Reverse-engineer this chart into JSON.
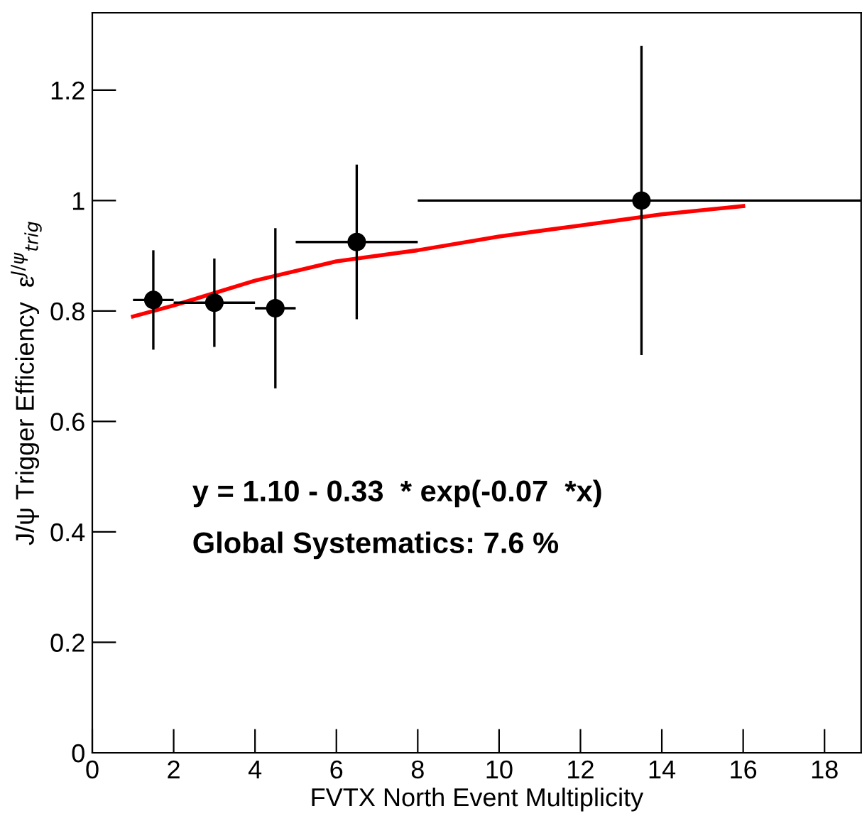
{
  "chart_data": {
    "type": "scatter",
    "xlabel": "FVTX North Event Multiplicity",
    "ylabel": "J/ψ Trigger Efficiency  ε$^{J/ψ}$$_{trig}$",
    "x": [
      1.5,
      3,
      4.5,
      6.5,
      13.5
    ],
    "series": [
      {
        "type": "scatter",
        "color": "#000000",
        "marker": "circle",
        "values": [
          0.82,
          0.815,
          0.805,
          0.925,
          1.0
        ],
        "errors": [
          0.09,
          0.08,
          0.145,
          0.14,
          0.28
        ],
        "xerrors": [
          0.5,
          1,
          0.5,
          1.5,
          5.5
        ]
      },
      {
        "type": "line",
        "color": "#ff0000",
        "marker": "none",
        "line_style": "solid",
        "x": [
          1,
          2,
          4,
          6,
          8,
          10,
          12,
          14,
          16
        ],
        "values": [
          0.79,
          0.81,
          0.855,
          0.89,
          0.91,
          0.935,
          0.955,
          0.975,
          0.99
        ]
      }
    ],
    "annotations": [
      "y = 1.10 - 0.33  * exp(-0.07  *x)",
      "Global Systematics: 7.6 %"
    ],
    "xlim": [
      0,
      18.9
    ],
    "ylim": [
      0,
      1.34
    ],
    "xticks": [
      0,
      2,
      4,
      6,
      8,
      10,
      12,
      14,
      16,
      18
    ],
    "yticks": [
      0,
      0.2,
      0.4,
      0.6,
      0.8,
      1,
      1.2
    ],
    "grid": false,
    "legend": false
  }
}
